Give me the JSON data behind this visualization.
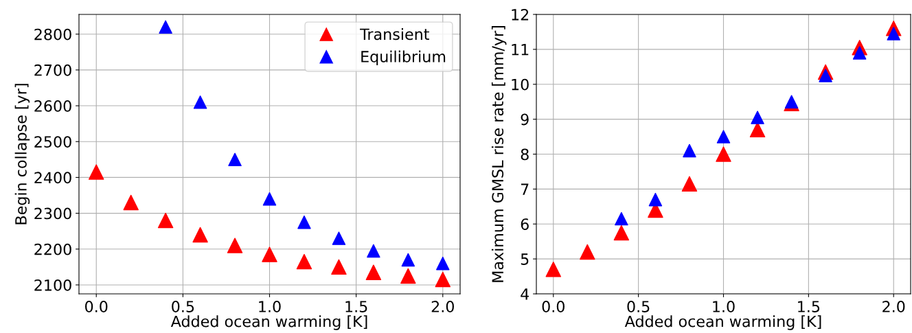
{
  "chart_data": [
    {
      "type": "scatter",
      "xlabel": "Added ocean warming [K]",
      "ylabel": "Begin collapse [yr]",
      "marker": "triangle",
      "grid": true,
      "legend": "top right",
      "xlim": [
        -0.1,
        2.1
      ],
      "xticks": [
        {
          "value": 0,
          "label": "0.0"
        },
        {
          "value": 0.5,
          "label": "0.5"
        },
        {
          "value": 1,
          "label": "1.0"
        },
        {
          "value": 1.5,
          "label": "1.5"
        },
        {
          "value": 2,
          "label": "2.0"
        }
      ],
      "ylim": [
        2075,
        2855
      ],
      "yticks": [
        2100,
        2200,
        2300,
        2400,
        2500,
        2600,
        2700,
        2800
      ],
      "series": [
        {
          "name": "Transient",
          "color": "#ff0000",
          "x": [
            0,
            0.2,
            0.4,
            0.6,
            0.8,
            1.0,
            1.2,
            1.4,
            1.6,
            1.8,
            2.0
          ],
          "values": [
            2415,
            2330,
            2280,
            2240,
            2210,
            2185,
            2165,
            2150,
            2135,
            2125,
            2115
          ]
        },
        {
          "name": "Equilibrium",
          "color": "#0000ff",
          "x": [
            0.4,
            0.6,
            0.8,
            1.0,
            1.2,
            1.4,
            1.6,
            1.8,
            2.0
          ],
          "values": [
            2820,
            2610,
            2450,
            2340,
            2275,
            2230,
            2195,
            2170,
            2160
          ]
        }
      ]
    },
    {
      "type": "scatter",
      "xlabel": "Added ocean warming [K]",
      "ylabel": "Maximum GMSL rise rate [mm/yr]",
      "marker": "triangle",
      "grid": true,
      "xlim": [
        -0.1,
        2.1
      ],
      "xticks": [
        {
          "value": 0,
          "label": "0.0"
        },
        {
          "value": 0.5,
          "label": "0.5"
        },
        {
          "value": 1,
          "label": "1.0"
        },
        {
          "value": 1.5,
          "label": "1.5"
        },
        {
          "value": 2,
          "label": "2.0"
        }
      ],
      "ylim": [
        4,
        12
      ],
      "yticks": [
        4,
        5,
        6,
        7,
        8,
        9,
        10,
        11,
        12
      ],
      "series": [
        {
          "color": "#ff0000",
          "x": [
            0,
            0.2,
            0.4,
            0.6,
            0.8,
            1.0,
            1.2,
            1.4,
            1.6,
            1.8,
            2.0
          ],
          "values": [
            4.7,
            5.2,
            5.75,
            6.4,
            7.15,
            8.0,
            8.7,
            9.45,
            10.35,
            11.05,
            11.6
          ]
        },
        {
          "color": "#0000ff",
          "x": [
            0.4,
            0.6,
            0.8,
            1.0,
            1.2,
            1.4,
            1.6,
            1.8,
            2.0
          ],
          "values": [
            6.15,
            6.7,
            8.1,
            8.5,
            9.05,
            9.5,
            10.25,
            10.9,
            11.45
          ]
        }
      ]
    }
  ]
}
